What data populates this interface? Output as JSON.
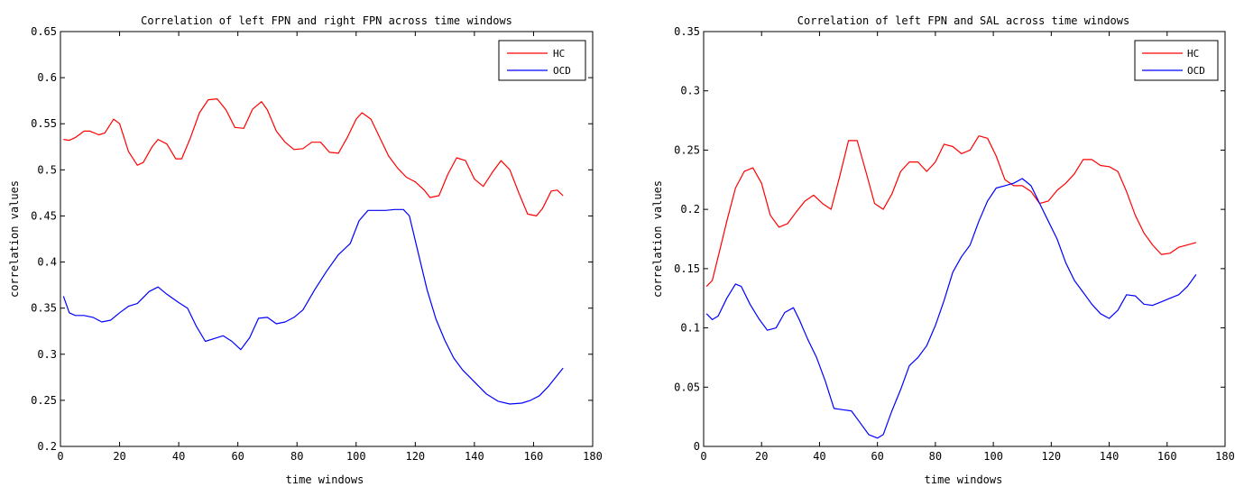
{
  "charts": [
    {
      "id": "left",
      "title": "Correlation of left FPN and right FPN across time windows",
      "xlabel": "time windows",
      "ylabel": "correlation values",
      "xlim": [
        0,
        180
      ],
      "ylim": [
        0.2,
        0.65
      ],
      "xticks": [
        "0",
        "20",
        "40",
        "60",
        "80",
        "100",
        "120",
        "140",
        "160",
        "180"
      ],
      "yticks": [
        "0.2",
        "0.25",
        "0.3",
        "0.35",
        "0.4",
        "0.45",
        "0.5",
        "0.55",
        "0.6",
        "0.65"
      ],
      "legend_position": "top-right"
    },
    {
      "id": "right",
      "title": "Correlation of left FPN and SAL across time windows",
      "xlabel": "time windows",
      "ylabel": "correlation values",
      "xlim": [
        0,
        180
      ],
      "ylim": [
        0,
        0.35
      ],
      "xticks": [
        "0",
        "20",
        "40",
        "60",
        "80",
        "100",
        "120",
        "140",
        "160",
        "180"
      ],
      "yticks": [
        "0",
        "0.05",
        "0.1",
        "0.15",
        "0.2",
        "0.25",
        "0.3",
        "0.35"
      ],
      "legend_position": "top-right"
    }
  ],
  "chart_data": [
    {
      "type": "line",
      "title": "Correlation of left FPN and right FPN across time windows",
      "xlabel": "time windows",
      "ylabel": "correlation values",
      "xlim": [
        0,
        180
      ],
      "ylim": [
        0.2,
        0.65
      ],
      "grid": false,
      "legend": "top-right",
      "series": [
        {
          "name": "HC",
          "color": "#ff0000",
          "x": [
            1,
            3,
            5,
            8,
            10,
            13,
            15,
            18,
            20,
            23,
            26,
            28,
            31,
            33,
            36,
            39,
            41,
            44,
            47,
            50,
            53,
            56,
            59,
            62,
            65,
            68,
            70,
            73,
            76,
            79,
            82,
            85,
            88,
            91,
            94,
            97,
            100,
            102,
            105,
            108,
            111,
            114,
            117,
            120,
            123,
            125,
            128,
            131,
            134,
            137,
            140,
            143,
            146,
            149,
            152,
            155,
            158,
            161,
            163,
            166,
            168,
            170
          ],
          "y": [
            0.533,
            0.532,
            0.535,
            0.542,
            0.542,
            0.538,
            0.54,
            0.555,
            0.55,
            0.52,
            0.505,
            0.508,
            0.525,
            0.533,
            0.528,
            0.512,
            0.512,
            0.535,
            0.562,
            0.576,
            0.577,
            0.565,
            0.546,
            0.545,
            0.566,
            0.574,
            0.565,
            0.542,
            0.53,
            0.522,
            0.523,
            0.53,
            0.53,
            0.519,
            0.518,
            0.535,
            0.555,
            0.562,
            0.555,
            0.535,
            0.515,
            0.502,
            0.492,
            0.487,
            0.478,
            0.47,
            0.472,
            0.495,
            0.513,
            0.51,
            0.49,
            0.482,
            0.497,
            0.51,
            0.5,
            0.475,
            0.452,
            0.45,
            0.458,
            0.477,
            0.478,
            0.472
          ]
        },
        {
          "name": "OCD",
          "color": "#0000ff",
          "x": [
            1,
            3,
            5,
            8,
            11,
            14,
            17,
            20,
            23,
            26,
            30,
            33,
            36,
            40,
            43,
            46,
            49,
            52,
            55,
            58,
            61,
            64,
            67,
            70,
            73,
            76,
            79,
            82,
            86,
            90,
            94,
            98,
            101,
            104,
            107,
            110,
            113,
            116,
            118,
            121,
            124,
            127,
            130,
            133,
            136,
            140,
            144,
            148,
            152,
            156,
            159,
            162,
            165,
            168,
            170
          ],
          "y": [
            0.363,
            0.345,
            0.342,
            0.342,
            0.34,
            0.335,
            0.337,
            0.345,
            0.352,
            0.355,
            0.368,
            0.373,
            0.365,
            0.356,
            0.35,
            0.33,
            0.314,
            0.317,
            0.32,
            0.314,
            0.305,
            0.318,
            0.339,
            0.34,
            0.333,
            0.335,
            0.34,
            0.348,
            0.37,
            0.39,
            0.408,
            0.42,
            0.445,
            0.456,
            0.456,
            0.456,
            0.457,
            0.457,
            0.45,
            0.41,
            0.37,
            0.338,
            0.315,
            0.296,
            0.283,
            0.27,
            0.257,
            0.249,
            0.246,
            0.247,
            0.25,
            0.255,
            0.265,
            0.277,
            0.285
          ]
        }
      ]
    },
    {
      "type": "line",
      "title": "Correlation of left FPN and SAL across time windows",
      "xlabel": "time windows",
      "ylabel": "correlation values",
      "xlim": [
        0,
        180
      ],
      "ylim": [
        0,
        0.35
      ],
      "grid": false,
      "legend": "top-right",
      "series": [
        {
          "name": "HC",
          "color": "#ff0000",
          "x": [
            1,
            3,
            5,
            8,
            11,
            14,
            17,
            20,
            23,
            26,
            29,
            32,
            35,
            38,
            41,
            44,
            47,
            50,
            53,
            56,
            59,
            62,
            65,
            68,
            71,
            74,
            77,
            80,
            83,
            86,
            89,
            92,
            95,
            98,
            101,
            104,
            107,
            110,
            113,
            116,
            119,
            122,
            125,
            128,
            131,
            134,
            137,
            140,
            143,
            146,
            149,
            152,
            155,
            158,
            161,
            164,
            167,
            170
          ],
          "y": [
            0.135,
            0.14,
            0.16,
            0.19,
            0.218,
            0.232,
            0.235,
            0.222,
            0.195,
            0.185,
            0.188,
            0.198,
            0.207,
            0.212,
            0.205,
            0.2,
            0.228,
            0.258,
            0.258,
            0.232,
            0.205,
            0.2,
            0.213,
            0.232,
            0.24,
            0.24,
            0.232,
            0.24,
            0.255,
            0.253,
            0.247,
            0.25,
            0.262,
            0.26,
            0.245,
            0.225,
            0.22,
            0.22,
            0.215,
            0.205,
            0.207,
            0.216,
            0.222,
            0.23,
            0.242,
            0.242,
            0.237,
            0.236,
            0.232,
            0.215,
            0.195,
            0.18,
            0.17,
            0.162,
            0.163,
            0.168,
            0.17,
            0.172
          ]
        },
        {
          "name": "OCD",
          "color": "#0000ff",
          "x": [
            1,
            3,
            5,
            8,
            11,
            13,
            16,
            19,
            22,
            25,
            28,
            31,
            33,
            36,
            39,
            42,
            45,
            48,
            51,
            54,
            57,
            60,
            62,
            65,
            68,
            71,
            74,
            77,
            80,
            83,
            86,
            89,
            92,
            95,
            98,
            101,
            104,
            107,
            110,
            113,
            116,
            119,
            122,
            125,
            128,
            131,
            134,
            137,
            140,
            143,
            146,
            149,
            152,
            155,
            158,
            161,
            164,
            167,
            170
          ],
          "y": [
            0.112,
            0.107,
            0.11,
            0.125,
            0.137,
            0.135,
            0.12,
            0.108,
            0.098,
            0.1,
            0.113,
            0.117,
            0.107,
            0.09,
            0.075,
            0.055,
            0.032,
            0.031,
            0.03,
            0.02,
            0.01,
            0.007,
            0.01,
            0.03,
            0.048,
            0.068,
            0.075,
            0.085,
            0.102,
            0.123,
            0.147,
            0.16,
            0.17,
            0.19,
            0.207,
            0.218,
            0.22,
            0.222,
            0.226,
            0.22,
            0.205,
            0.19,
            0.175,
            0.155,
            0.14,
            0.13,
            0.12,
            0.112,
            0.108,
            0.115,
            0.128,
            0.127,
            0.12,
            0.119,
            0.122,
            0.125,
            0.128,
            0.135,
            0.145
          ]
        }
      ]
    }
  ]
}
